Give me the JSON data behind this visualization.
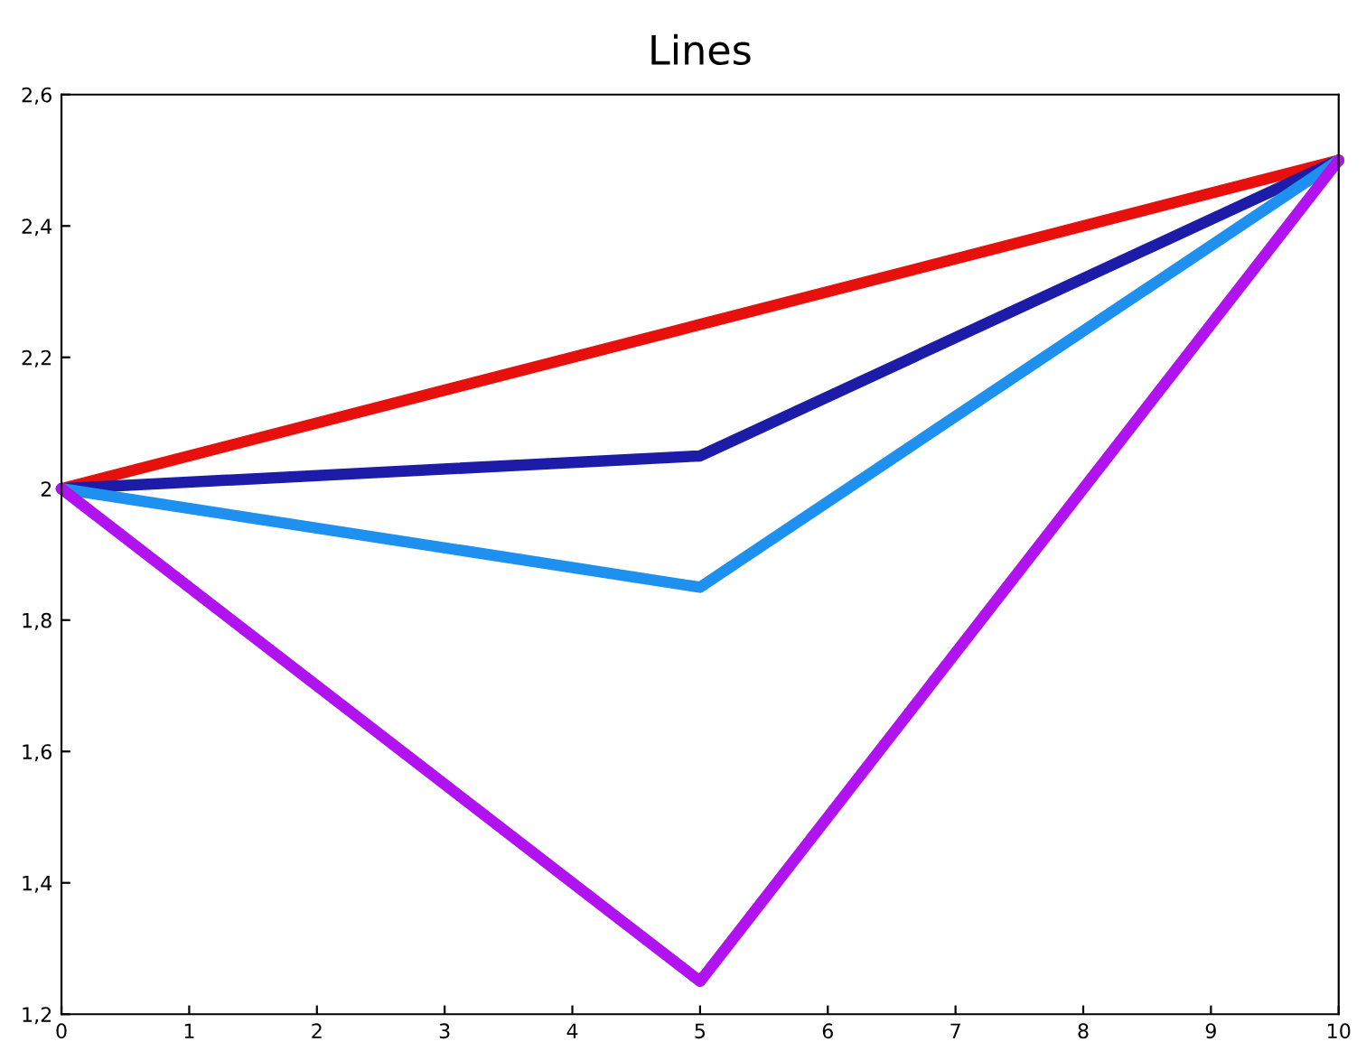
{
  "chart_data": {
    "type": "line",
    "title": "Lines",
    "x": [
      0,
      5,
      10
    ],
    "series": [
      {
        "color": "#e8100c",
        "values": [
          2,
          2.25,
          2.5
        ]
      },
      {
        "color": "#1c1ca8",
        "values": [
          2,
          2.05,
          2.5
        ]
      },
      {
        "color": "#1e90f0",
        "values": [
          2,
          1.85,
          2.5
        ]
      },
      {
        "color": "#b012f0",
        "values": [
          2,
          1.25,
          2.5
        ]
      }
    ],
    "xlim": [
      0,
      10
    ],
    "xticks": [
      0,
      1,
      2,
      3,
      4,
      5,
      6,
      7,
      8,
      9,
      10
    ],
    "ylim": [
      1.2,
      2.6
    ],
    "yticks": [
      {
        "value": 1.2,
        "label": "1,2"
      },
      {
        "value": 1.4,
        "label": "1,4"
      },
      {
        "value": 1.6,
        "label": "1,6"
      },
      {
        "value": 1.8,
        "label": "1,8"
      },
      2,
      {
        "value": 2.2,
        "label": "2,2"
      },
      {
        "value": 2.4,
        "label": "2,4"
      },
      {
        "value": 2.6,
        "label": "2,6"
      }
    ],
    "grid": false,
    "legend": false,
    "line_style": "solid",
    "marker": "none"
  }
}
